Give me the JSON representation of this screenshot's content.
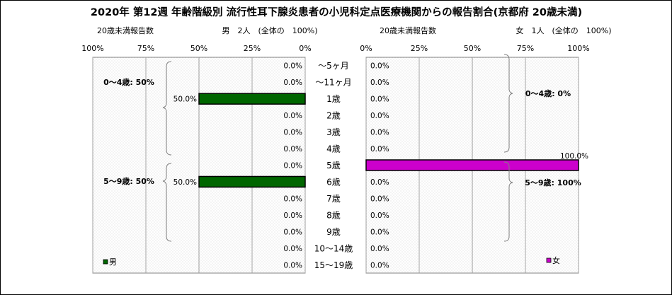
{
  "title": "2020年 第12週 年齢階級別 流行性耳下腺炎患者の小児科定点医療機関からの報告割合(京都府 20歳未満)",
  "chart_data": {
    "type": "bar",
    "orientation": "horizontal-butterfly",
    "categories": [
      "～5ヶ月",
      "～11ヶ月",
      "1歳",
      "2歳",
      "3歳",
      "4歳",
      "5歳",
      "6歳",
      "7歳",
      "8歳",
      "9歳",
      "10～14歳",
      "15～19歳"
    ],
    "left": {
      "subtitle_label": "20歳未満報告数",
      "subtitle_count": "男　2人　(全体の　100%)",
      "ticks": [
        "100%",
        "75%",
        "50%",
        "25%",
        "0%"
      ],
      "xlim": [
        0,
        100
      ],
      "direction": "reversed",
      "series": [
        {
          "name": "男",
          "color": "#006600",
          "values": [
            0,
            0,
            50,
            0,
            0,
            0,
            0,
            50,
            0,
            0,
            0,
            0,
            0
          ],
          "labels": [
            "0.0%",
            "0.0%",
            "50.0%",
            "0.0%",
            "0.0%",
            "0.0%",
            "0.0%",
            "50.0%",
            "0.0%",
            "0.0%",
            "0.0%",
            "0.0%",
            "0.0%"
          ]
        }
      ],
      "groups": [
        "0～4歳: 50%",
        "5～9歳: 50%"
      ],
      "legend": "男"
    },
    "right": {
      "subtitle_label": "20歳未満報告数",
      "subtitle_count": "女　1人　(全体の　100%)",
      "ticks": [
        "0%",
        "25%",
        "50%",
        "75%",
        "100%"
      ],
      "xlim": [
        0,
        100
      ],
      "series": [
        {
          "name": "女",
          "color": "#CC00CC",
          "values": [
            0,
            0,
            0,
            0,
            0,
            0,
            100,
            0,
            0,
            0,
            0,
            0,
            0
          ],
          "labels": [
            "0.0%",
            "0.0%",
            "0.0%",
            "0.0%",
            "0.0%",
            "0.0%",
            "100.0%",
            "0.0%",
            "0.0%",
            "0.0%",
            "0.0%",
            "0.0%",
            "0.0%"
          ]
        }
      ],
      "groups": [
        "0～4歳: 0%",
        "5～9歳: 100%"
      ],
      "legend": "女"
    },
    "grid": true
  }
}
